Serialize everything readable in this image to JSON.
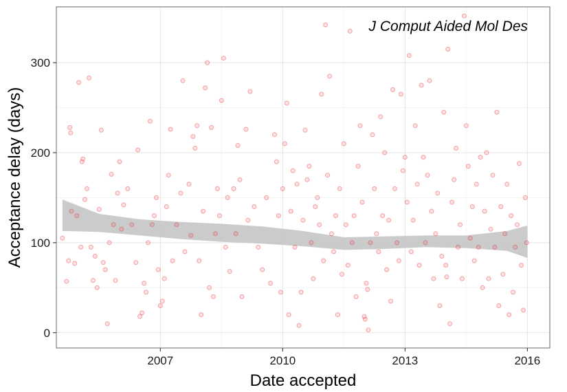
{
  "chart_data": {
    "type": "scatter",
    "xlabel": "Date accepted",
    "ylabel": "Acceptance delay (days)",
    "annotation": "J Comput Aided Mol Des",
    "x_tick_labels": [
      "2007",
      "2010",
      "2013",
      "2016"
    ],
    "y_tick_labels": [
      "0",
      "100",
      "200",
      "300"
    ],
    "x_ticks": [
      2007,
      2010,
      2013,
      2016
    ],
    "y_ticks": [
      0,
      100,
      200,
      300
    ],
    "xlim": [
      2004.45,
      2016.55
    ],
    "ylim": [
      -17,
      362
    ],
    "grid": true,
    "legend": "none",
    "point_color": "#e8262b",
    "smooth_band_color": "#c8c8c8",
    "series": [
      {
        "values": [
          [
            2004.6,
            105
          ],
          [
            2004.7,
            57
          ],
          [
            2004.75,
            80
          ],
          [
            2004.78,
            228
          ],
          [
            2004.8,
            222
          ],
          [
            2004.82,
            135
          ],
          [
            2004.9,
            77
          ],
          [
            2004.95,
            130
          ],
          [
            2005.0,
            278
          ],
          [
            2005.05,
            95
          ],
          [
            2005.08,
            190
          ],
          [
            2005.1,
            193
          ],
          [
            2005.15,
            148
          ],
          [
            2005.2,
            160
          ],
          [
            2005.25,
            283
          ],
          [
            2005.3,
            95
          ],
          [
            2005.35,
            58
          ],
          [
            2005.4,
            85
          ],
          [
            2005.45,
            50
          ],
          [
            2005.5,
            137
          ],
          [
            2005.55,
            225
          ],
          [
            2005.6,
            78
          ],
          [
            2005.65,
            70
          ],
          [
            2005.7,
            10
          ],
          [
            2005.75,
            100
          ],
          [
            2005.8,
            176
          ],
          [
            2005.85,
            120
          ],
          [
            2005.9,
            58
          ],
          [
            2005.95,
            155
          ],
          [
            2006.0,
            190
          ],
          [
            2006.05,
            115
          ],
          [
            2006.1,
            142
          ],
          [
            2006.2,
            160
          ],
          [
            2006.3,
            120
          ],
          [
            2006.4,
            78
          ],
          [
            2006.45,
            203
          ],
          [
            2006.5,
            18
          ],
          [
            2006.55,
            22
          ],
          [
            2006.6,
            55
          ],
          [
            2006.65,
            45
          ],
          [
            2006.7,
            100
          ],
          [
            2006.75,
            235
          ],
          [
            2006.8,
            120
          ],
          [
            2006.85,
            130
          ],
          [
            2006.9,
            150
          ],
          [
            2006.95,
            70
          ],
          [
            2007.0,
            30
          ],
          [
            2007.05,
            35
          ],
          [
            2007.1,
            60
          ],
          [
            2007.15,
            140
          ],
          [
            2007.2,
            175
          ],
          [
            2007.25,
            226
          ],
          [
            2007.3,
            80
          ],
          [
            2007.4,
            120
          ],
          [
            2007.5,
            155
          ],
          [
            2007.55,
            280
          ],
          [
            2007.6,
            90
          ],
          [
            2007.7,
            165
          ],
          [
            2007.75,
            108
          ],
          [
            2007.8,
            218
          ],
          [
            2007.85,
            205
          ],
          [
            2007.9,
            230
          ],
          [
            2007.95,
            80
          ],
          [
            2008.0,
            20
          ],
          [
            2008.05,
            135
          ],
          [
            2008.1,
            272
          ],
          [
            2008.15,
            300
          ],
          [
            2008.2,
            50
          ],
          [
            2008.25,
            228
          ],
          [
            2008.3,
            40
          ],
          [
            2008.35,
            110
          ],
          [
            2008.4,
            160
          ],
          [
            2008.45,
            130
          ],
          [
            2008.5,
            258
          ],
          [
            2008.55,
            305
          ],
          [
            2008.6,
            95
          ],
          [
            2008.65,
            150
          ],
          [
            2008.7,
            68
          ],
          [
            2008.8,
            160
          ],
          [
            2008.85,
            110
          ],
          [
            2008.9,
            208
          ],
          [
            2008.95,
            170
          ],
          [
            2009.0,
            40
          ],
          [
            2009.1,
            226
          ],
          [
            2009.15,
            125
          ],
          [
            2009.2,
            268
          ],
          [
            2009.3,
            140
          ],
          [
            2009.4,
            95
          ],
          [
            2009.5,
            70
          ],
          [
            2009.6,
            150
          ],
          [
            2009.7,
            55
          ],
          [
            2009.8,
            220
          ],
          [
            2009.85,
            190
          ],
          [
            2009.9,
            130
          ],
          [
            2009.95,
            45
          ],
          [
            2010.0,
            160
          ],
          [
            2010.05,
            210
          ],
          [
            2010.1,
            255
          ],
          [
            2010.15,
            20
          ],
          [
            2010.2,
            135
          ],
          [
            2010.25,
            180
          ],
          [
            2010.3,
            95
          ],
          [
            2010.35,
            165
          ],
          [
            2010.4,
            8
          ],
          [
            2010.45,
            45
          ],
          [
            2010.5,
            125
          ],
          [
            2010.55,
            225
          ],
          [
            2010.6,
            170
          ],
          [
            2010.65,
            185
          ],
          [
            2010.7,
            100
          ],
          [
            2010.75,
            60
          ],
          [
            2010.8,
            140
          ],
          [
            2010.85,
            150
          ],
          [
            2010.9,
            120
          ],
          [
            2010.95,
            265
          ],
          [
            2011.0,
            80
          ],
          [
            2011.05,
            342
          ],
          [
            2011.1,
            175
          ],
          [
            2011.15,
            285
          ],
          [
            2011.2,
            110
          ],
          [
            2011.25,
            90
          ],
          [
            2011.3,
            130
          ],
          [
            2011.35,
            20
          ],
          [
            2011.4,
            160
          ],
          [
            2011.45,
            65
          ],
          [
            2011.5,
            210
          ],
          [
            2011.55,
            120
          ],
          [
            2011.6,
            75
          ],
          [
            2011.65,
            335
          ],
          [
            2011.7,
            100
          ],
          [
            2011.75,
            130
          ],
          [
            2011.8,
            40
          ],
          [
            2011.85,
            185
          ],
          [
            2011.9,
            230
          ],
          [
            2011.95,
            145
          ],
          [
            2012.0,
            18
          ],
          [
            2012.02,
            15
          ],
          [
            2012.05,
            55
          ],
          [
            2012.08,
            48
          ],
          [
            2012.1,
            3
          ],
          [
            2012.15,
            100
          ],
          [
            2012.2,
            220
          ],
          [
            2012.25,
            160
          ],
          [
            2012.3,
            110
          ],
          [
            2012.35,
            90
          ],
          [
            2012.4,
            240
          ],
          [
            2012.45,
            130
          ],
          [
            2012.5,
            200
          ],
          [
            2012.55,
            70
          ],
          [
            2012.6,
            125
          ],
          [
            2012.65,
            35
          ],
          [
            2012.7,
            270
          ],
          [
            2012.75,
            160
          ],
          [
            2012.8,
            100
          ],
          [
            2012.85,
            80
          ],
          [
            2012.9,
            265
          ],
          [
            2012.95,
            180
          ],
          [
            2013.0,
            195
          ],
          [
            2013.05,
            145
          ],
          [
            2013.1,
            308
          ],
          [
            2013.15,
            90
          ],
          [
            2013.2,
            125
          ],
          [
            2013.25,
            230
          ],
          [
            2013.3,
            165
          ],
          [
            2013.35,
            75
          ],
          [
            2013.4,
            275
          ],
          [
            2013.45,
            195
          ],
          [
            2013.5,
            100
          ],
          [
            2013.55,
            175
          ],
          [
            2013.6,
            280
          ],
          [
            2013.65,
            135
          ],
          [
            2013.7,
            60
          ],
          [
            2013.75,
            110
          ],
          [
            2013.8,
            155
          ],
          [
            2013.85,
            30
          ],
          [
            2013.9,
            85
          ],
          [
            2013.95,
            245
          ],
          [
            2014.0,
            75
          ],
          [
            2014.02,
            62
          ],
          [
            2014.05,
            315
          ],
          [
            2014.1,
            10
          ],
          [
            2014.15,
            145
          ],
          [
            2014.2,
            170
          ],
          [
            2014.25,
            205
          ],
          [
            2014.3,
            95
          ],
          [
            2014.35,
            120
          ],
          [
            2014.4,
            60
          ],
          [
            2014.45,
            352
          ],
          [
            2014.5,
            230
          ],
          [
            2014.55,
            185
          ],
          [
            2014.6,
            105
          ],
          [
            2014.65,
            140
          ],
          [
            2014.7,
            80
          ],
          [
            2014.75,
            165
          ],
          [
            2014.8,
            95
          ],
          [
            2014.85,
            195
          ],
          [
            2014.9,
            50
          ],
          [
            2014.95,
            135
          ],
          [
            2015.0,
            200
          ],
          [
            2015.05,
            60
          ],
          [
            2015.1,
            115
          ],
          [
            2015.15,
            175
          ],
          [
            2015.2,
            95
          ],
          [
            2015.25,
            245
          ],
          [
            2015.3,
            30
          ],
          [
            2015.35,
            140
          ],
          [
            2015.4,
            65
          ],
          [
            2015.45,
            110
          ],
          [
            2015.5,
            165
          ],
          [
            2015.55,
            20
          ],
          [
            2015.6,
            130
          ],
          [
            2015.65,
            45
          ],
          [
            2015.7,
            95
          ],
          [
            2015.75,
            120
          ],
          [
            2015.8,
            188
          ],
          [
            2015.85,
            75
          ],
          [
            2015.9,
            25
          ],
          [
            2015.95,
            150
          ],
          [
            2015.98,
            100
          ]
        ]
      }
    ],
    "smooth_band": {
      "x": [
        2004.6,
        2005.5,
        2006.5,
        2007.5,
        2008.5,
        2009.5,
        2010.5,
        2011.5,
        2012.5,
        2013.5,
        2014.5,
        2015.5,
        2016.0
      ],
      "upper": [
        148,
        132,
        126,
        123,
        121,
        118,
        113,
        106,
        107,
        108,
        108,
        113,
        119
      ],
      "lower": [
        113,
        112,
        108,
        104,
        101,
        99,
        96,
        92,
        93,
        95,
        94,
        91,
        83
      ]
    }
  }
}
